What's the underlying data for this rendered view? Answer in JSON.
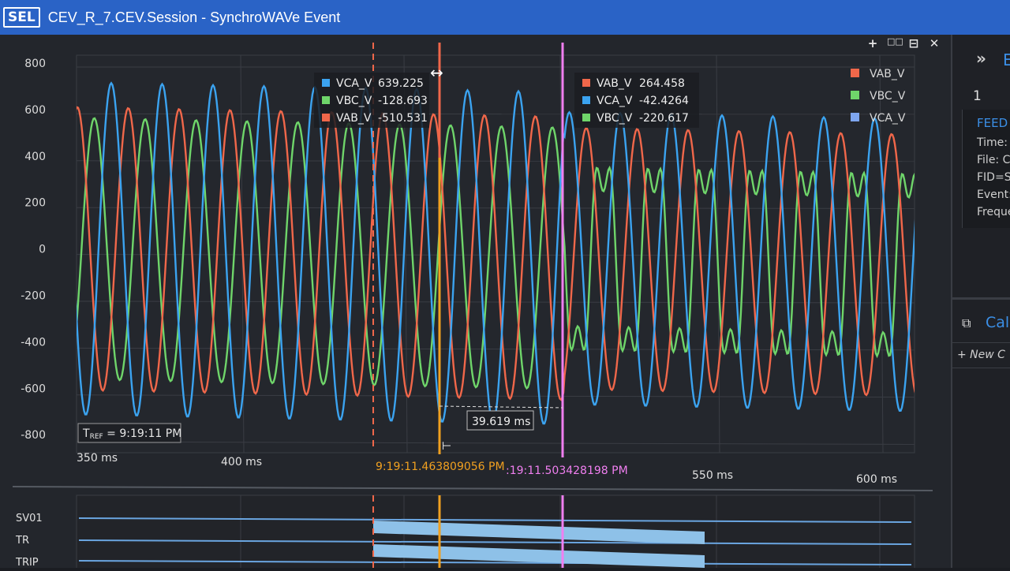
{
  "window": {
    "logo": "SEL",
    "title": "CEV_R_7.CEV.Session - SynchroWAVe Event"
  },
  "toolbar": {
    "icons": [
      "add-icon",
      "split-columns-icon",
      "split-rows-icon",
      "close-icon"
    ],
    "add": "+",
    "cols": "□□",
    "rows": "⊟",
    "close": "✕"
  },
  "chart": {
    "y_ticks": [
      "800",
      "600",
      "400",
      "200",
      "0",
      "-200",
      "-400",
      "-600",
      "-800"
    ],
    "x_ticks": [
      "350 ms",
      "400 ms",
      "550 ms",
      "600 ms"
    ],
    "tref": "9:19:11 PM",
    "tref_prefix": "T",
    "tref_sub": "REF",
    "legend": [
      {
        "name": "VAB_V",
        "color": "#f0674a"
      },
      {
        "name": "VBC_V",
        "color": "#6fd56a"
      },
      {
        "name": "VCA_V",
        "color": "#7ea6f0"
      }
    ],
    "cursor1": {
      "time": "9:19:11.463809056 PM",
      "readings": [
        {
          "name": "VCA_V",
          "value": "639.225",
          "color": "#3ba3f0"
        },
        {
          "name": "VBC_V",
          "value": "-128.693",
          "color": "#6fd56a"
        },
        {
          "name": "VAB_V",
          "value": "-510.531",
          "color": "#f0674a"
        }
      ]
    },
    "cursor2": {
      "time": ":19:11.503428198 PM",
      "readings": [
        {
          "name": "VAB_V",
          "value": "264.458",
          "color": "#f0674a"
        },
        {
          "name": "VCA_V",
          "value": "-42.4264",
          "color": "#3ba3f0"
        },
        {
          "name": "VBC_V",
          "value": "-220.617",
          "color": "#6fd56a"
        }
      ]
    },
    "delta": "39.619 ms",
    "colors": {
      "vab": "#f0674a",
      "vbc": "#6fd56a",
      "vca": "#3ba3f0",
      "cursor1": "#f0a020",
      "cursor2": "#f07ff0",
      "trigger": "#f0674a"
    }
  },
  "digital": {
    "labels": [
      "SV01",
      "TR",
      "TRIP"
    ]
  },
  "right_panel": {
    "expand": "»",
    "tab_letter": "E",
    "event_number": "1",
    "card_title": "FEED",
    "lines": [
      "Time:",
      "File: C",
      "FID=S",
      "Event:",
      "Freque"
    ],
    "calc": "Calc",
    "new_calc": "+ New C"
  }
}
